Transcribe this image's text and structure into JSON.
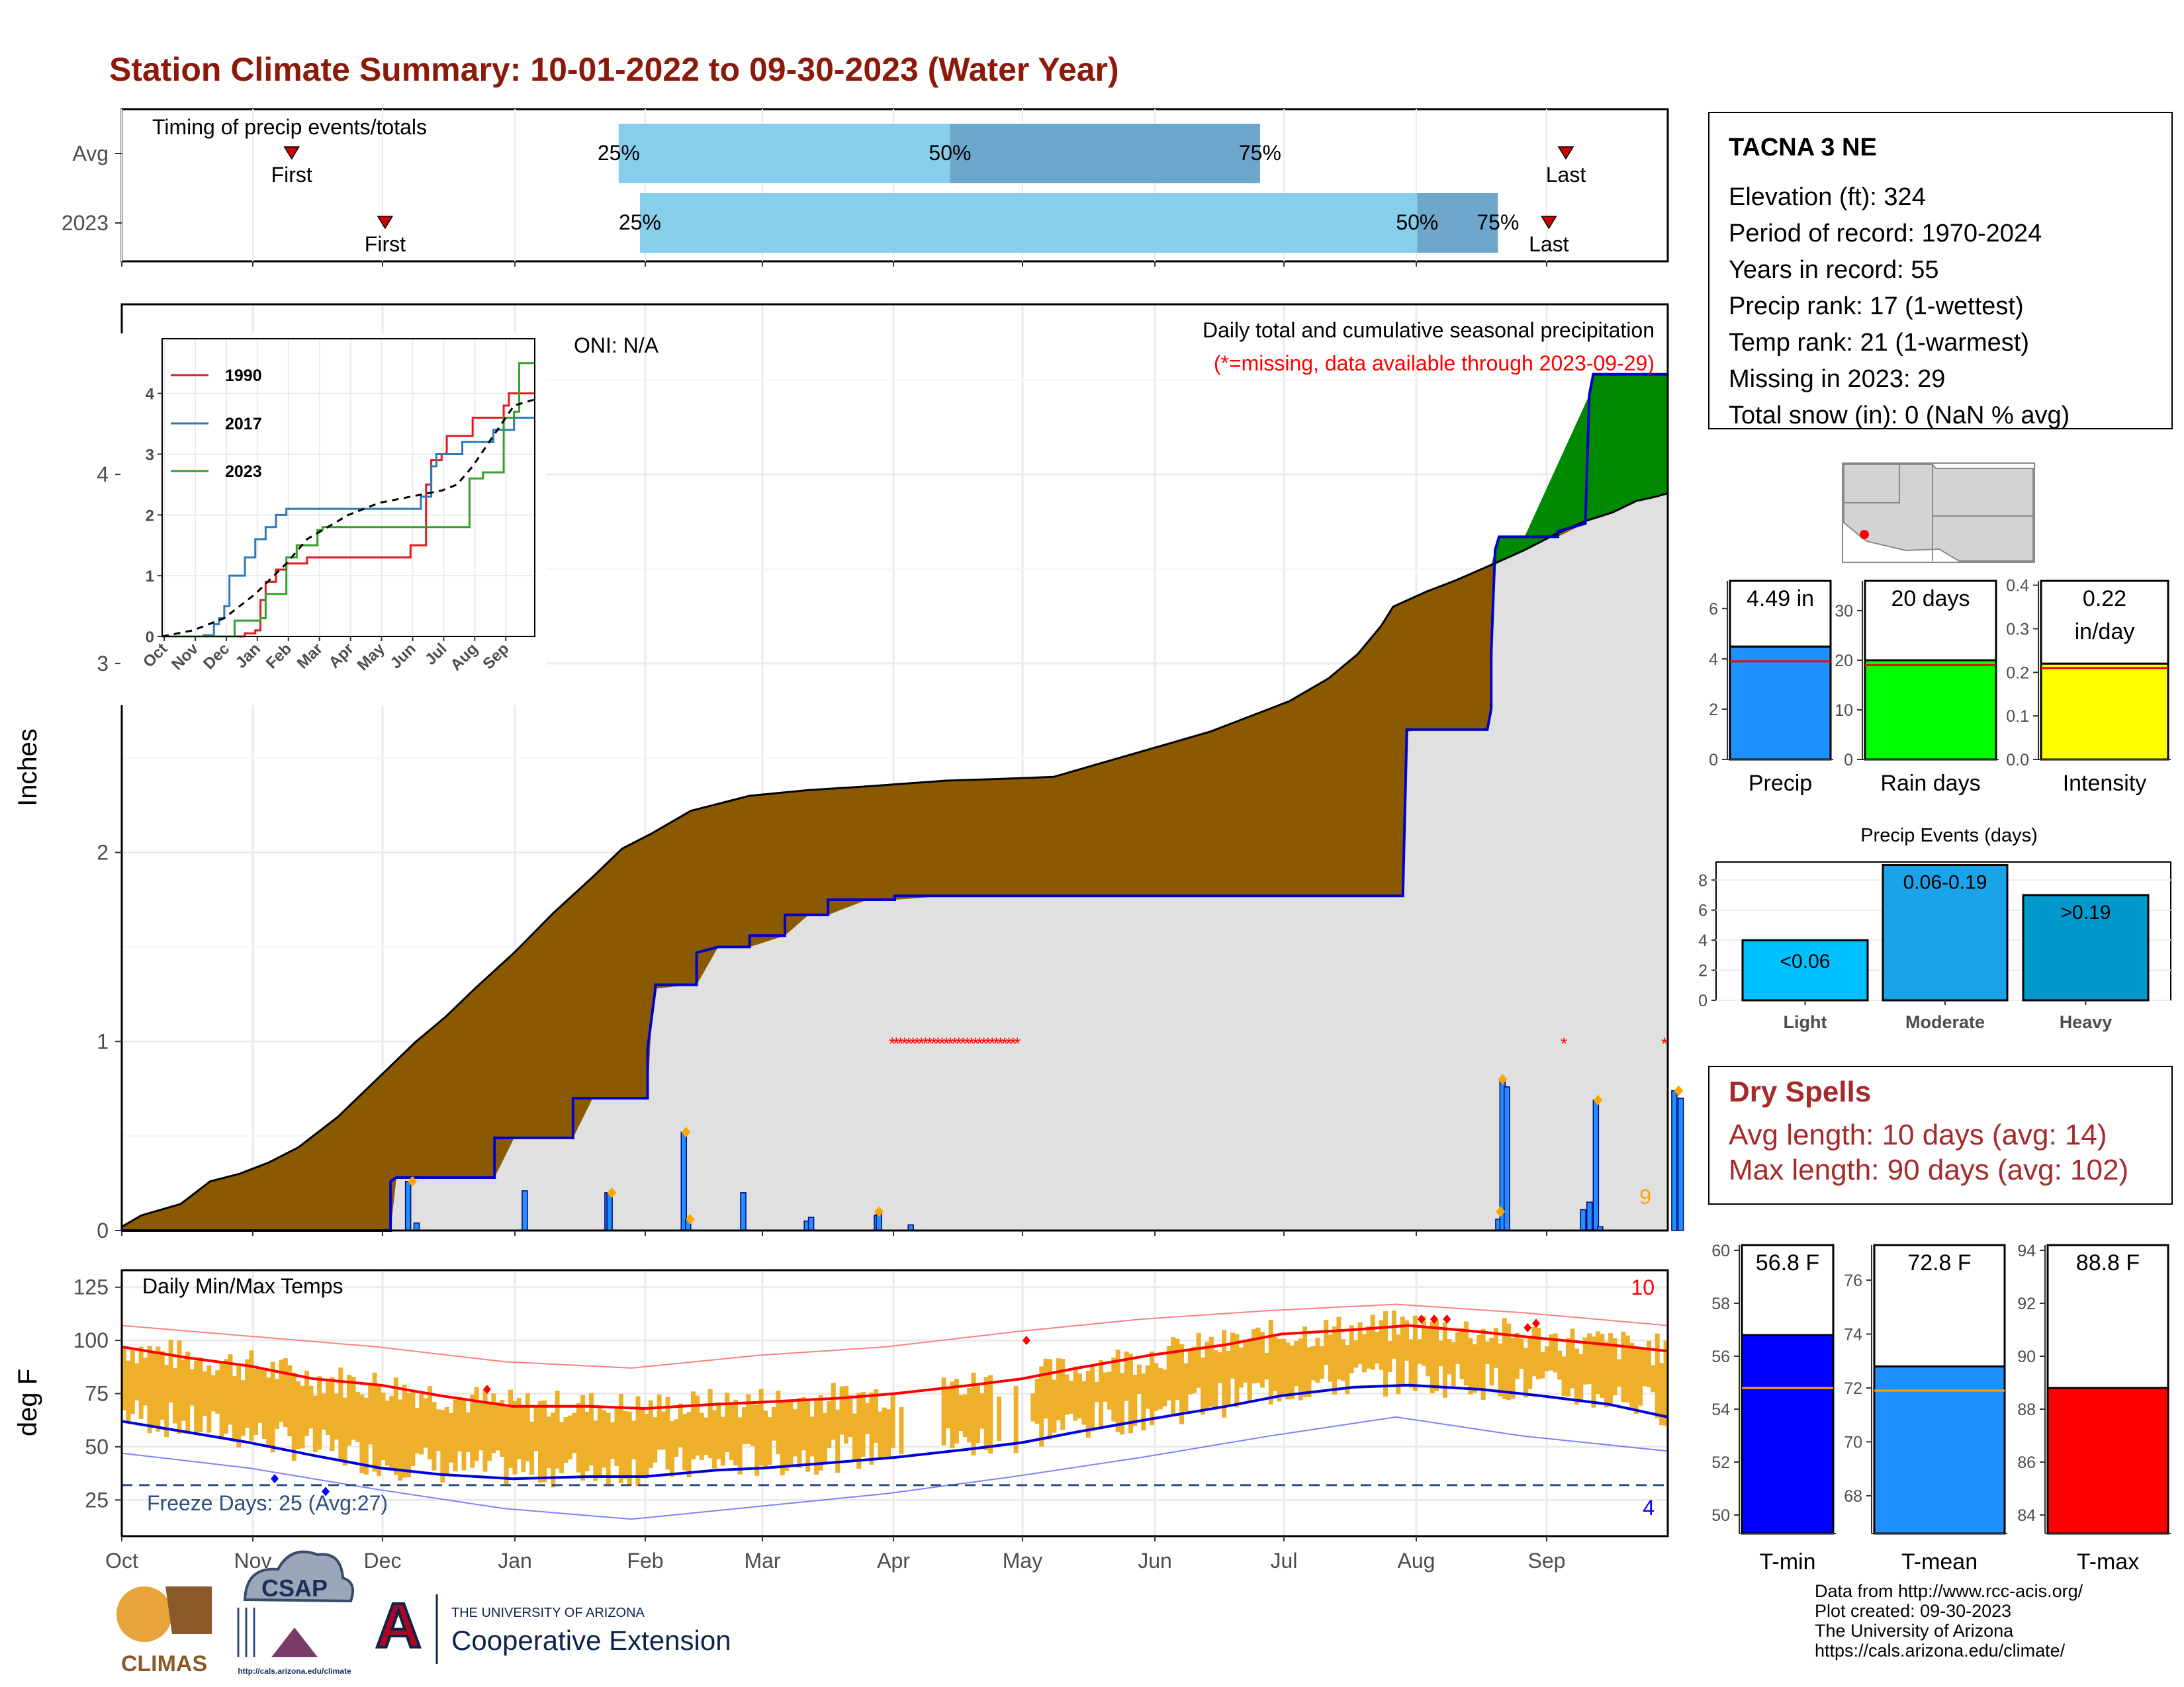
{
  "page_title": "Station Climate Summary: 10-01-2022 to 09-30-2023 (Water Year)",
  "colors": {
    "title": "#8b1a0a",
    "wet_fill": "#8b5a00",
    "green_fill": "#008a00",
    "cumulative_avg_fill": "#e0e0e0",
    "obs_line": "#0000cc",
    "bar_precip": "#1e90ff",
    "bar_raindays": "#00ff00",
    "bar_intensity": "#ffff00",
    "event_light": "#00bfff",
    "event_moderate": "#1aa3e8",
    "event_heavy": "#0099cc",
    "temp_band": "#eeb02a",
    "tmax_avg": "#ff0000",
    "tmin_avg": "#0000dd",
    "tmin_bar": "#0000ff",
    "tmean_bar": "#1e90ff",
    "tmax_bar": "#ff0000",
    "dry_spells": "#a52a2a",
    "light_blue": "#87ceeb",
    "steel_blue": "#6ea6cc"
  },
  "timing_panel": {
    "label": "Timing of precip events/totals",
    "rows": [
      {
        "row_label": "Avg",
        "p25": "25%",
        "p50": "50%",
        "p75": "75%",
        "p25_date": "2023-01-26",
        "p50_date": "2023-04-14",
        "p75_date": "2023-06-26",
        "first_date": "2022-11-10",
        "last_date": "2023-09-06",
        "first_label": "First",
        "last_label": "Last"
      },
      {
        "row_label": "2023",
        "p25": "25%",
        "p50": "50%",
        "p75": "75%",
        "p25_date": "2023-01-31",
        "p50_date": "2023-08-02",
        "p75_date": "2023-08-21",
        "first_date": "2022-12-02",
        "last_date": "2023-09-02",
        "first_label": "First",
        "last_label": "Last"
      }
    ]
  },
  "months": [
    "Oct",
    "Nov",
    "Dec",
    "Jan",
    "Feb",
    "Mar",
    "Apr",
    "May",
    "Jun",
    "Jul",
    "Aug",
    "Sep"
  ],
  "precip_panel": {
    "ylabel": "Inches",
    "oni_label": "ONI: N/A",
    "title": "Daily total and cumulative seasonal precipitation",
    "missing_note": "(*=missing, data available through 2023-09-29)",
    "corner_count": "9",
    "yticks": [
      "0",
      "1",
      "2",
      "3",
      "4"
    ],
    "ylim": [
      0,
      4.9
    ]
  },
  "inset": {
    "legend": [
      "1990",
      "2017",
      "2023"
    ],
    "yticks": [
      "0",
      "1",
      "2",
      "3",
      "4"
    ],
    "months": [
      "Oct",
      "Nov",
      "Dec",
      "Jan",
      "Feb",
      "Mar",
      "Apr",
      "May",
      "Jun",
      "Jul",
      "Aug",
      "Sep"
    ]
  },
  "temp_panel": {
    "ylabel": "deg F",
    "label": "Daily Min/Max Temps",
    "freeze_label": "Freeze Days: 25 (Avg:27)",
    "count_top": "10",
    "count_bottom": "4",
    "yticks": [
      "25",
      "50",
      "75",
      "100",
      "125"
    ],
    "ylim": [
      8,
      133
    ]
  },
  "station": {
    "name": "TACNA 3 NE",
    "lines": [
      "Elevation (ft): 324",
      "Period of record: 1970-2024",
      "Years in record: 55",
      "Precip rank: 17 (1-wettest)",
      "Temp rank: 21 (1-warmest)",
      "Missing in 2023: 29",
      "Total snow (in): 0 (NaN % avg)"
    ]
  },
  "summary_bars": [
    {
      "name": "Precip",
      "value": 4.49,
      "avg": 3.9,
      "label_line1": "4.49 in",
      "label_line2": "",
      "yticks": [
        "0",
        "2",
        "4",
        "6"
      ],
      "ylim": [
        0,
        7.1
      ]
    },
    {
      "name": "Rain days",
      "value": 20,
      "avg": 19,
      "label_line1": "20 days",
      "label_line2": "",
      "yticks": [
        "0",
        "10",
        "20",
        "30"
      ],
      "ylim": [
        0,
        36
      ]
    },
    {
      "name": "Intensity",
      "value": 0.22,
      "avg": 0.21,
      "label_line1": "0.22",
      "label_line2": "in/day",
      "yticks": [
        "0.0",
        "0.1",
        "0.2",
        "0.3",
        "0.4"
      ],
      "ylim": [
        0,
        0.41
      ]
    }
  ],
  "precip_events": {
    "title": "Precip Events (days)",
    "yticks": [
      "0",
      "2",
      "4",
      "6",
      "8"
    ],
    "ylim": [
      0,
      9.2
    ],
    "bars": [
      {
        "category": "Light",
        "label": "<0.06",
        "value": 4
      },
      {
        "category": "Moderate",
        "label": "0.06-0.19",
        "value": 9
      },
      {
        "category": "Heavy",
        "label": ">0.19",
        "value": 7
      }
    ]
  },
  "dry_spells": {
    "title": "Dry Spells",
    "avg_line": "Avg length: 10 days (avg: 14)",
    "max_line": "Max length: 90 days (avg: 102)"
  },
  "temp_bars": [
    {
      "name": "T-min",
      "value": 56.8,
      "avg": 54.8,
      "label": "56.8 F",
      "yticks": [
        "50",
        "52",
        "54",
        "56",
        "58",
        "60"
      ],
      "ylim": [
        49.3,
        60.2
      ]
    },
    {
      "name": "T-mean",
      "value": 72.8,
      "avg": 71.9,
      "label": "72.8 F",
      "yticks": [
        "68",
        "70",
        "72",
        "74",
        "76"
      ],
      "ylim": [
        66.6,
        77.3
      ]
    },
    {
      "name": "T-max",
      "value": 88.8,
      "avg": 88.9,
      "label": "88.8 F",
      "yticks": [
        "84",
        "86",
        "88",
        "90",
        "92",
        "94"
      ],
      "ylim": [
        83.3,
        94.2
      ]
    }
  ],
  "logos": {
    "climas": "CLIMAS",
    "csap": "CSAP",
    "csap_url": "http://cals.arizona.edu/climate",
    "ua_small": "THE UNIVERSITY OF ARIZONA",
    "ua_big": "Cooperative Extension",
    "ua_letter": "A"
  },
  "credits": {
    "line1": "Data from http://www.rcc-acis.org/",
    "line2": "Plot created: 09-30-2023",
    "line3": "The University of Arizona",
    "line4": "https://cals.arizona.edu/climate/"
  },
  "chart_data": [
    {
      "type": "area",
      "title": "Daily total and cumulative seasonal precipitation",
      "ylabel": "Inches",
      "ylim": [
        0,
        4.9
      ],
      "avg_cumulative": [
        [
          0,
          0.02
        ],
        [
          10,
          0.08
        ],
        [
          30,
          0.14
        ],
        [
          45,
          0.26
        ],
        [
          60,
          0.3
        ],
        [
          75,
          0.36
        ],
        [
          90,
          0.44
        ],
        [
          110,
          0.6
        ],
        [
          130,
          0.8
        ],
        [
          150,
          1.0
        ],
        [
          165,
          1.13
        ],
        [
          180,
          1.28
        ],
        [
          200,
          1.47
        ],
        [
          220,
          1.68
        ],
        [
          240,
          1.87
        ],
        [
          255,
          2.02
        ],
        [
          270,
          2.1
        ],
        [
          290,
          2.22
        ],
        [
          320,
          2.3
        ],
        [
          350,
          2.33
        ],
        [
          380,
          2.35
        ],
        [
          420,
          2.38
        ],
        [
          450,
          2.39
        ],
        [
          475,
          2.4
        ],
        [
          495,
          2.46
        ],
        [
          515,
          2.52
        ],
        [
          535,
          2.58
        ],
        [
          555,
          2.64
        ],
        [
          575,
          2.72
        ],
        [
          595,
          2.8
        ],
        [
          615,
          2.92
        ],
        [
          630,
          3.05
        ],
        [
          642,
          3.2
        ],
        [
          648,
          3.3
        ],
        [
          665,
          3.38
        ],
        [
          680,
          3.44
        ],
        [
          700,
          3.53
        ],
        [
          715,
          3.6
        ],
        [
          730,
          3.68
        ],
        [
          745,
          3.75
        ],
        [
          760,
          3.8
        ],
        [
          772,
          3.86
        ],
        [
          781,
          3.88
        ],
        [
          788,
          3.9
        ]
      ],
      "obs_cumulative": [
        [
          0,
          0
        ],
        [
          137,
          0
        ],
        [
          137,
          0.26
        ],
        [
          140,
          0.28
        ],
        [
          190,
          0.28
        ],
        [
          190,
          0.49
        ],
        [
          230,
          0.49
        ],
        [
          230,
          0.7
        ],
        [
          268,
          0.7
        ],
        [
          268,
          0.96
        ],
        [
          272,
          1.28
        ],
        [
          272,
          1.3
        ],
        [
          293,
          1.3
        ],
        [
          293,
          1.47
        ],
        [
          304,
          1.5
        ],
        [
          320,
          1.5
        ],
        [
          320,
          1.56
        ],
        [
          338,
          1.56
        ],
        [
          338,
          1.67
        ],
        [
          360,
          1.67
        ],
        [
          360,
          1.75
        ],
        [
          394,
          1.75
        ],
        [
          394,
          1.77
        ],
        [
          653,
          1.77
        ],
        [
          653,
          1.79
        ],
        [
          655,
          2.64
        ],
        [
          655,
          2.65
        ],
        [
          696,
          2.65
        ],
        [
          698,
          2.76
        ],
        [
          698,
          3.06
        ],
        [
          700,
          3.6
        ],
        [
          702,
          3.67
        ],
        [
          732,
          3.67
        ],
        [
          732,
          3.7
        ],
        [
          746,
          3.74
        ],
        [
          748,
          4.42
        ],
        [
          750,
          4.53
        ],
        [
          788,
          4.53
        ]
      ],
      "green_region": {
        "top": 4.53
      },
      "daily_bars": [
        [
          135,
          0.26
        ],
        [
          139,
          0.04
        ],
        [
          190,
          0.21
        ],
        [
          229,
          0.2
        ],
        [
          230,
          0.2
        ],
        [
          265,
          0.52
        ],
        [
          267,
          0.06
        ],
        [
          293,
          0.2
        ],
        [
          323,
          0.05
        ],
        [
          325,
          0.07
        ],
        [
          356,
          0.08
        ],
        [
          357,
          0.1
        ],
        [
          372,
          0.03
        ],
        [
          649,
          0.06
        ],
        [
          651,
          0.8
        ],
        [
          653,
          0.76
        ],
        [
          689,
          0.11
        ],
        [
          692,
          0.15
        ],
        [
          695,
          0.69
        ],
        [
          697,
          0.02
        ],
        [
          732,
          0.74
        ],
        [
          735,
          0.7
        ]
      ],
      "event_markers": [
        [
          137,
          0.26
        ],
        [
          266,
          0.52
        ],
        [
          268,
          0.06
        ],
        [
          231,
          0.2
        ],
        [
          357,
          0.1
        ],
        [
          651,
          0.8
        ],
        [
          650,
          0.1
        ],
        [
          696,
          0.69
        ],
        [
          734,
          0.74
        ]
      ],
      "missing_dates": [
        [
          393,
          464
        ],
        [
          762
        ],
        [
          809
        ]
      ]
    },
    {
      "type": "line",
      "title": "",
      "series": [
        {
          "name": "1990",
          "x": [
            0,
            30,
            60,
            80,
            90,
            95,
            100,
            110,
            120,
            140,
            180,
            220,
            240,
            255,
            260,
            270,
            275,
            300,
            330,
            335,
            360
          ],
          "y": [
            0,
            0,
            0,
            0.05,
            0.1,
            0.6,
            0.9,
            1.1,
            1.2,
            1.3,
            1.3,
            1.3,
            1.5,
            2.5,
            2.9,
            3.0,
            3.3,
            3.6,
            3.8,
            4.0,
            4.0
          ]
        },
        {
          "name": "2017",
          "x": [
            0,
            20,
            40,
            50,
            55,
            60,
            65,
            75,
            80,
            90,
            100,
            110,
            120,
            140,
            180,
            220,
            250,
            260,
            265,
            290,
            320,
            340,
            360
          ],
          "y": [
            0,
            0,
            0.02,
            0.2,
            0.3,
            0.5,
            1.0,
            1.0,
            1.3,
            1.6,
            1.8,
            2.0,
            2.1,
            2.1,
            2.1,
            2.1,
            2.3,
            2.8,
            3.0,
            3.2,
            3.4,
            3.6,
            3.6
          ]
        },
        {
          "name": "2023",
          "x": [
            0,
            65,
            70,
            95,
            100,
            120,
            130,
            150,
            155,
            200,
            250,
            280,
            295,
            297,
            310,
            330,
            340,
            345,
            360
          ],
          "y": [
            0,
            0,
            0.26,
            0.3,
            0.7,
            1.3,
            1.5,
            1.75,
            1.8,
            1.8,
            1.8,
            1.8,
            1.8,
            2.6,
            2.7,
            3.6,
            3.7,
            4.5,
            4.5
          ]
        },
        {
          "name": "Avg",
          "x": [
            0,
            30,
            60,
            90,
            120,
            140,
            160,
            180,
            210,
            240,
            270,
            285,
            300,
            320,
            340,
            360
          ],
          "y": [
            0,
            0.1,
            0.3,
            0.7,
            1.2,
            1.6,
            1.8,
            2.0,
            2.2,
            2.3,
            2.4,
            2.5,
            2.8,
            3.3,
            3.8,
            3.9
          ]
        }
      ],
      "ylim": [
        0,
        4.9
      ],
      "xlim": [
        0,
        360
      ]
    },
    {
      "type": "line",
      "title": "Daily Min/Max Temps",
      "ylabel": "deg F",
      "ylim": [
        8,
        133
      ],
      "series": [
        {
          "name": "avg tmax",
          "x": [
            0,
            15,
            30,
            45,
            61,
            75,
            92,
            110,
            123,
            140,
            151,
            170,
            182,
            200,
            212,
            225,
            242,
            260,
            273,
            290,
            303,
            320,
            334,
            350,
            364
          ],
          "y": [
            97,
            92,
            88,
            82,
            79,
            74,
            69,
            69,
            68,
            70,
            71,
            73,
            75,
            79,
            82,
            87,
            93,
            98,
            103,
            105,
            107,
            104,
            101,
            98,
            95
          ]
        },
        {
          "name": "avg tmin",
          "x": [
            0,
            15,
            30,
            45,
            61,
            75,
            92,
            110,
            123,
            140,
            151,
            170,
            182,
            200,
            212,
            225,
            242,
            260,
            273,
            290,
            303,
            320,
            334,
            350,
            364
          ],
          "y": [
            62,
            57,
            52,
            46,
            40,
            37,
            35,
            36,
            36,
            39,
            40,
            43,
            45,
            49,
            52,
            57,
            63,
            69,
            74,
            78,
            79,
            77,
            74,
            70,
            64
          ]
        },
        {
          "name": "record max",
          "x": [
            0,
            30,
            60,
            90,
            120,
            150,
            180,
            210,
            240,
            270,
            300,
            330,
            364
          ],
          "y": [
            107,
            102,
            97,
            90,
            87,
            93,
            97,
            104,
            110,
            114,
            117,
            113,
            107
          ]
        },
        {
          "name": "record min",
          "x": [
            0,
            30,
            60,
            90,
            120,
            150,
            180,
            210,
            240,
            270,
            300,
            330,
            364
          ],
          "y": [
            47,
            40,
            30,
            21,
            16,
            22,
            28,
            36,
            45,
            55,
            64,
            55,
            48
          ]
        }
      ],
      "freeze_line": 32,
      "xlim": [
        0,
        364
      ]
    }
  ]
}
